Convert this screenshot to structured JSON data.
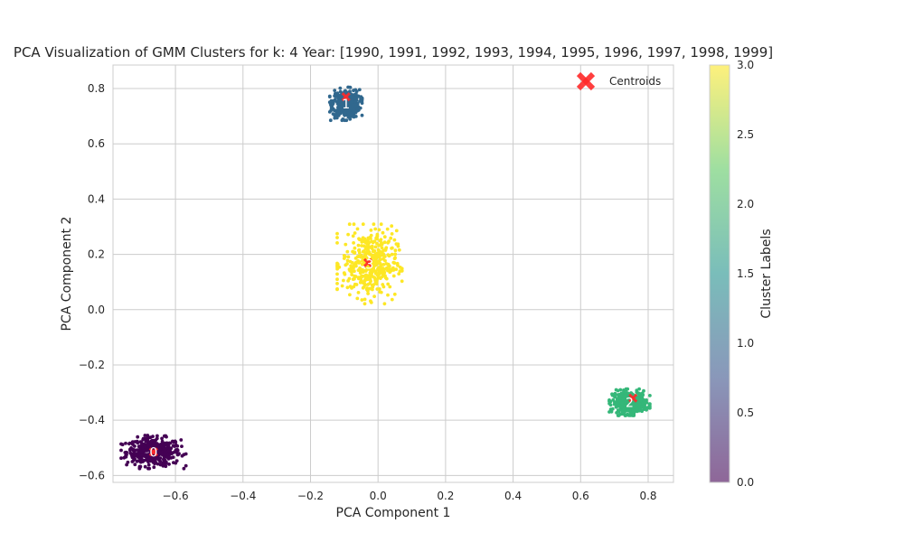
{
  "chart_data": {
    "type": "scatter",
    "title": "PCA Visualization of GMM Clusters for k: 4 Year: [1990, 1991, 1992, 1993, 1994, 1995, 1996, 1997, 1998, 1999]",
    "xlabel": "PCA Component 1",
    "ylabel": "PCA Component 2",
    "xlim": [
      -0.785,
      0.875
    ],
    "ylim": [
      -0.625,
      0.885
    ],
    "x_ticks": [
      "−0.6",
      "−0.4",
      "−0.2",
      "0.0",
      "0.2",
      "0.4",
      "0.6",
      "0.8"
    ],
    "x_tick_values": [
      -0.6,
      -0.4,
      -0.2,
      0.0,
      0.2,
      0.4,
      0.6,
      0.8
    ],
    "y_ticks": [
      "−0.6",
      "−0.4",
      "−0.2",
      "0.0",
      "0.2",
      "0.4",
      "0.6",
      "0.8"
    ],
    "y_tick_values": [
      -0.6,
      -0.4,
      -0.2,
      0.0,
      0.2,
      0.4,
      0.6,
      0.8
    ],
    "grid": true,
    "clusters": [
      {
        "label": "0",
        "value": 0,
        "color": "#440154",
        "center": [
          -0.665,
          -0.515
        ],
        "spread": [
          0.04,
          0.025
        ]
      },
      {
        "label": "1",
        "value": 1,
        "color": "#31688e",
        "center": [
          -0.095,
          0.745
        ],
        "spread": [
          0.02,
          0.025
        ]
      },
      {
        "label": "2",
        "value": 2,
        "color": "#35b779",
        "center": [
          0.745,
          -0.335
        ],
        "spread": [
          0.025,
          0.02
        ]
      },
      {
        "label": "3",
        "value": 3,
        "color": "#fde725",
        "center": [
          -0.025,
          0.165
        ],
        "spread": [
          0.04,
          0.06
        ]
      }
    ],
    "centroids": [
      {
        "x": -0.665,
        "y": -0.515
      },
      {
        "x": -0.095,
        "y": 0.77
      },
      {
        "x": 0.755,
        "y": -0.32
      },
      {
        "x": -0.03,
        "y": 0.17
      }
    ],
    "legend": {
      "entries": [
        "Centroids"
      ],
      "placement": "top-right",
      "marker_color": "#ff2a2a"
    },
    "colorbar": {
      "label": "Cluster Labels",
      "range": [
        0.0,
        3.0
      ],
      "ticks": [
        "0.0",
        "0.5",
        "1.0",
        "1.5",
        "2.0",
        "2.5",
        "3.0"
      ],
      "tick_values": [
        0.0,
        0.5,
        1.0,
        1.5,
        2.0,
        2.5,
        3.0
      ],
      "colormap": "viridis"
    }
  }
}
